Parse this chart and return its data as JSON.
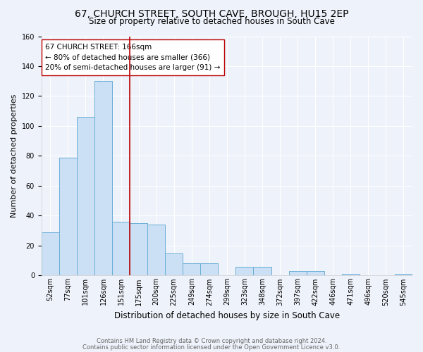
{
  "title": "67, CHURCH STREET, SOUTH CAVE, BROUGH, HU15 2EP",
  "subtitle": "Size of property relative to detached houses in South Cave",
  "xlabel": "Distribution of detached houses by size in South Cave",
  "ylabel": "Number of detached properties",
  "bin_labels": [
    "52sqm",
    "77sqm",
    "101sqm",
    "126sqm",
    "151sqm",
    "175sqm",
    "200sqm",
    "225sqm",
    "249sqm",
    "274sqm",
    "299sqm",
    "323sqm",
    "348sqm",
    "372sqm",
    "397sqm",
    "422sqm",
    "446sqm",
    "471sqm",
    "496sqm",
    "520sqm",
    "545sqm"
  ],
  "bar_heights": [
    29,
    79,
    106,
    130,
    36,
    35,
    34,
    15,
    8,
    8,
    0,
    6,
    6,
    0,
    3,
    3,
    0,
    1,
    0,
    0,
    1
  ],
  "bar_color": "#cce0f5",
  "bar_edge_color": "#6aaed6",
  "vline_bin": 4.5,
  "vline_color": "#bb0000",
  "annotation_text": "67 CHURCH STREET: 166sqm\n← 80% of detached houses are smaller (366)\n20% of semi-detached houses are larger (91) →",
  "annotation_box_color": "#ffffff",
  "annotation_box_edge_color": "#bb0000",
  "ylim": [
    0,
    160
  ],
  "yticks": [
    0,
    20,
    40,
    60,
    80,
    100,
    120,
    140,
    160
  ],
  "footnote1": "Contains HM Land Registry data © Crown copyright and database right 2024.",
  "footnote2": "Contains public sector information licensed under the Open Government Licence v3.0.",
  "background_color": "#eef2fa",
  "grid_color": "#ffffff",
  "title_fontsize": 10,
  "subtitle_fontsize": 8.5,
  "ylabel_fontsize": 8,
  "xlabel_fontsize": 8.5,
  "annotation_fontsize": 7.5,
  "tick_fontsize": 7,
  "footnote_fontsize": 6
}
